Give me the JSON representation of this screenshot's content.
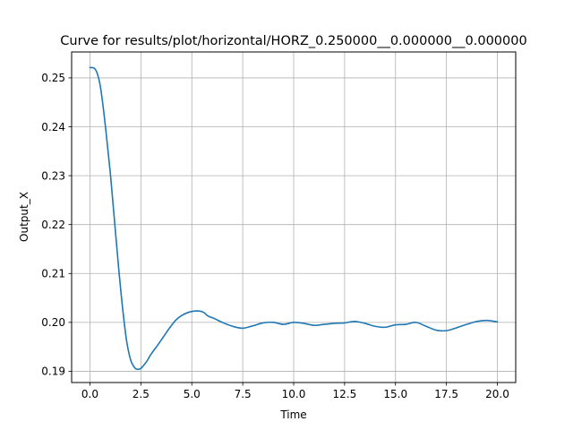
{
  "chart_data": {
    "type": "line",
    "title": "Curve for results/plot/horizontal/HORZ_0.250000__0.000000__0.000000",
    "xlabel": "Time",
    "ylabel": "Output_X",
    "xlim": [
      -0.9,
      20.9
    ],
    "ylim": [
      0.1877,
      0.2553
    ],
    "xticks": [
      0.0,
      2.5,
      5.0,
      7.5,
      10.0,
      12.5,
      15.0,
      17.5,
      20.0
    ],
    "xtick_labels": [
      "0.0",
      "2.5",
      "5.0",
      "7.5",
      "10.0",
      "12.5",
      "15.0",
      "17.5",
      "20.0"
    ],
    "yticks": [
      0.19,
      0.2,
      0.21,
      0.22,
      0.23,
      0.24,
      0.25
    ],
    "ytick_labels": [
      "0.19",
      "0.20",
      "0.21",
      "0.22",
      "0.23",
      "0.24",
      "0.25"
    ],
    "grid": true,
    "line_color": "#1f77b4",
    "grid_color": "#b0b0b0",
    "series": [
      {
        "x": [
          0.0,
          0.2,
          0.35,
          0.5,
          0.65,
          0.8,
          1.0,
          1.2,
          1.4,
          1.6,
          1.8,
          2.0,
          2.2,
          2.35,
          2.5,
          2.65,
          2.8,
          3.0,
          3.3,
          3.6,
          3.9,
          4.2,
          4.5,
          4.8,
          5.1,
          5.4,
          5.6,
          5.8,
          6.1,
          6.5,
          7.0,
          7.5,
          8.0,
          8.5,
          9.0,
          9.5,
          10.0,
          10.5,
          11.0,
          11.5,
          12.0,
          12.5,
          13.0,
          13.5,
          14.0,
          14.5,
          15.0,
          15.5,
          16.0,
          16.5,
          17.0,
          17.5,
          18.0,
          18.5,
          19.0,
          19.5,
          20.0
        ],
        "y": [
          0.2521,
          0.252,
          0.251,
          0.2485,
          0.244,
          0.2385,
          0.2305,
          0.221,
          0.2115,
          0.203,
          0.1962,
          0.1923,
          0.1907,
          0.1904,
          0.1906,
          0.1913,
          0.1921,
          0.1935,
          0.1952,
          0.197,
          0.1988,
          0.2004,
          0.2014,
          0.202,
          0.2023,
          0.2023,
          0.202,
          0.2013,
          0.2008,
          0.2,
          0.1992,
          0.1988,
          0.1993,
          0.1999,
          0.2,
          0.1996,
          0.2,
          0.1998,
          0.1994,
          0.1996,
          0.1998,
          0.1999,
          0.2002,
          0.1998,
          0.1992,
          0.199,
          0.1995,
          0.1996,
          0.2,
          0.1992,
          0.1984,
          0.1983,
          0.1989,
          0.1996,
          0.2002,
          0.2004,
          0.2001
        ]
      }
    ]
  }
}
